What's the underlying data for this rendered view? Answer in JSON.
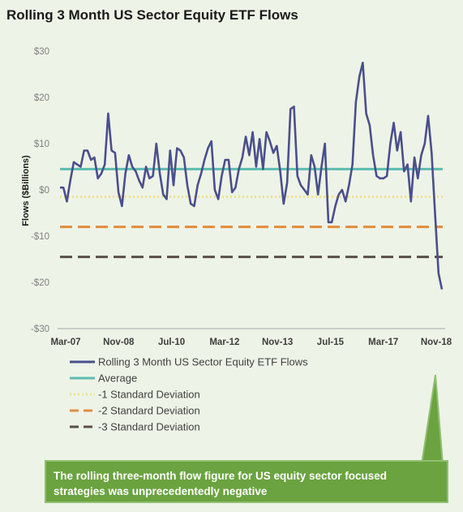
{
  "title": "Rolling 3 Month US Sector Equity ETF Flows",
  "note": "The rolling three-month flow figure for US equity sector focused strategies was unprecedentedly negative",
  "chart_data": {
    "type": "line",
    "title": "Rolling 3 Month US Sector Equity ETF Flows",
    "ylabel": "Flows ($Billions)",
    "xlabel": "",
    "ylim": [
      -30,
      30
    ],
    "y_ticks": [
      "$30",
      "$20",
      "$10",
      "$0",
      "-$10",
      "-$20",
      "-$30"
    ],
    "y_tick_values": [
      30,
      20,
      10,
      0,
      -10,
      -20,
      -30
    ],
    "x_tick_labels": [
      "Mar-07",
      "Nov-08",
      "Jul-10",
      "Mar-12",
      "Nov-13",
      "Jul-15",
      "Mar-17",
      "Nov-18"
    ],
    "grid": false,
    "legend_position": "bottom",
    "series": [
      {
        "name": "Rolling 3 Month US Sector Equity ETF Flows",
        "color": "#4a4f8c",
        "style": "solid",
        "values": [
          0.5,
          0.5,
          -2.5,
          2,
          6,
          5.5,
          5,
          8.5,
          8.5,
          6.5,
          7,
          2.5,
          3.5,
          5.5,
          16.5,
          8.5,
          8,
          -0.5,
          -3.5,
          3.5,
          7.5,
          5,
          4,
          2,
          0.5,
          5,
          2.5,
          3,
          10,
          3.5,
          -1,
          -2,
          8.5,
          1,
          9,
          8.5,
          7,
          1,
          -3,
          -3.5,
          1,
          3.5,
          6.5,
          9,
          10.5,
          0,
          -2,
          3,
          6.5,
          6.5,
          -0.5,
          0.5,
          4.5,
          7,
          11.5,
          7.5,
          12.5,
          5,
          11,
          4.5,
          12.5,
          10.5,
          8,
          9.5,
          4,
          -3,
          1.5,
          17.5,
          18,
          3,
          1,
          0,
          -1,
          7.5,
          5,
          -1,
          5,
          10,
          -7,
          -7,
          -3.5,
          -1,
          0,
          -2.5,
          1,
          5.5,
          19,
          24.5,
          27.5,
          16.5,
          14,
          7.5,
          3,
          2.5,
          2.5,
          3,
          10,
          14.5,
          8.5,
          12.5,
          4,
          5.5,
          -2.5,
          7,
          2.5,
          7.5,
          10,
          16,
          8,
          -5,
          -18,
          -21.5
        ]
      },
      {
        "name": "Average",
        "color": "#5cbcb0",
        "style": "solid",
        "values": [
          4.5
        ]
      },
      {
        "name": "-1 Standard Deviation",
        "color": "#eee28a",
        "style": "dotted",
        "values": [
          -1.5
        ]
      },
      {
        "name": "-2 Standard Deviation",
        "color": "#e38c3c",
        "style": "dashed",
        "values": [
          -8
        ]
      },
      {
        "name": "-3 Standard Deviation",
        "color": "#585048",
        "style": "dashed",
        "values": [
          -14.5
        ]
      }
    ]
  },
  "colors": {
    "background": "#eef3e7",
    "axis": "#a6a6a6",
    "callout_fill": "#6aa33f",
    "callout_stroke": "#8fbf70"
  }
}
